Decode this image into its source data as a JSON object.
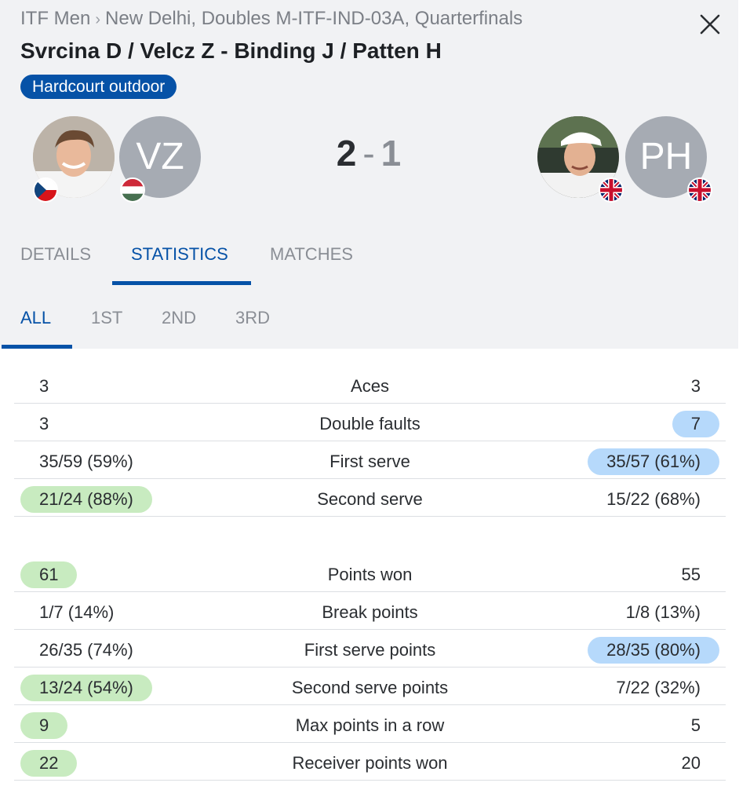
{
  "header": {
    "breadcrumb": [
      "ITF Men",
      "New Delhi, Doubles M-ITF-IND-03A, Quarterfinals"
    ],
    "breadcrumb_separator": "›",
    "title": "Svrcina D / Velcz Z - Binding J / Patten H",
    "surface": "Hardcourt outdoor",
    "close_icon": "close-icon"
  },
  "home_team": {
    "players": [
      {
        "initials": "",
        "flag": "czech-flag-icon",
        "has_photo": true
      },
      {
        "initials": "VZ",
        "flag": "hungary-flag-icon",
        "has_photo": false
      }
    ]
  },
  "away_team": {
    "players": [
      {
        "initials": "",
        "flag": "uk-flag-icon",
        "has_photo": true
      },
      {
        "initials": "PH",
        "flag": "uk-flag-icon",
        "has_photo": false
      }
    ]
  },
  "score": {
    "home": "2",
    "separator": "-",
    "away": "1"
  },
  "tabs": [
    {
      "label": "DETAILS",
      "active": false
    },
    {
      "label": "STATISTICS",
      "active": true
    },
    {
      "label": "MATCHES",
      "active": false
    }
  ],
  "subtabs": [
    {
      "label": "ALL",
      "active": true
    },
    {
      "label": "1ST",
      "active": false
    },
    {
      "label": "2ND",
      "active": false
    },
    {
      "label": "3RD",
      "active": false
    }
  ],
  "stats": [
    {
      "label": "Aces",
      "home": "3",
      "away": "3",
      "highlight": "none"
    },
    {
      "label": "Double faults",
      "home": "3",
      "away": "7",
      "highlight": "away"
    },
    {
      "label": "First serve",
      "home": "35/59 (59%)",
      "away": "35/57 (61%)",
      "highlight": "away"
    },
    {
      "label": "Second serve",
      "home": "21/24 (88%)",
      "away": "15/22 (68%)",
      "highlight": "home"
    },
    {
      "label": "Points won",
      "home": "61",
      "away": "55",
      "highlight": "home"
    },
    {
      "label": "Break points",
      "home": "1/7 (14%)",
      "away": "1/8 (13%)",
      "highlight": "none"
    },
    {
      "label": "First serve points",
      "home": "26/35 (74%)",
      "away": "28/35 (80%)",
      "highlight": "away"
    },
    {
      "label": "Second serve points",
      "home": "13/24 (54%)",
      "away": "7/22 (32%)",
      "highlight": "home"
    },
    {
      "label": "Max points in a row",
      "home": "9",
      "away": "5",
      "highlight": "home"
    },
    {
      "label": "Receiver points won",
      "home": "22",
      "away": "20",
      "highlight": "home"
    }
  ],
  "colors": {
    "accent": "#0652a7",
    "home_highlight": "#c8ebc0",
    "away_highlight": "#b6d9fb",
    "header_bg": "#f1f2f4"
  }
}
